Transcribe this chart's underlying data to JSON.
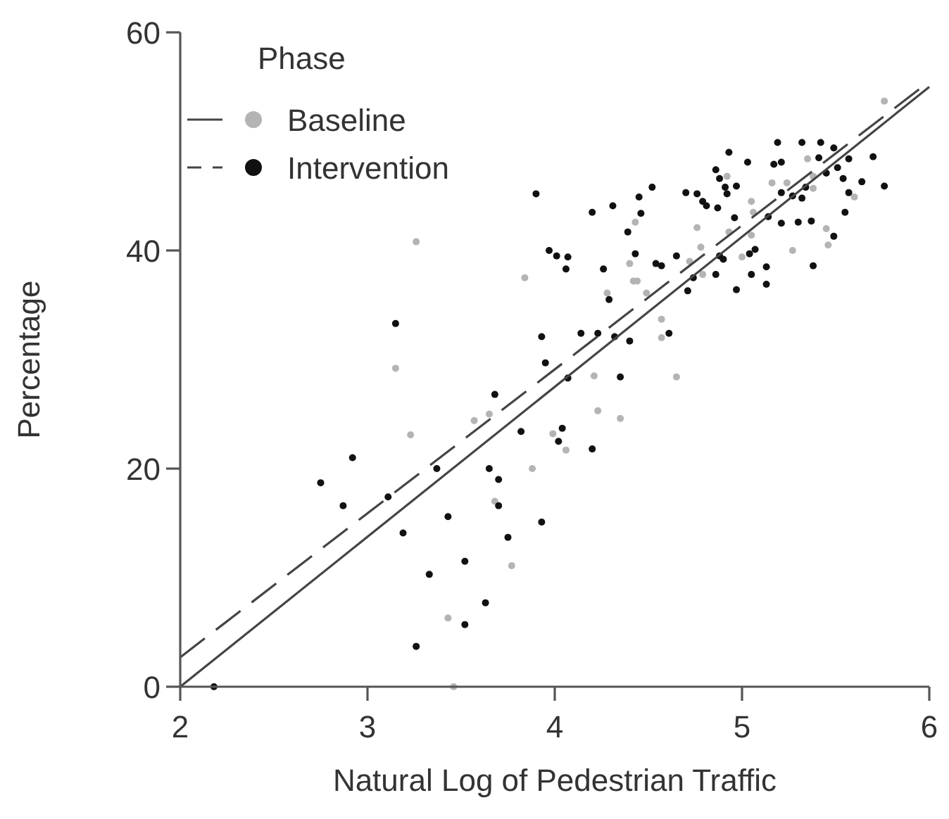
{
  "chart_data": {
    "type": "scatter",
    "xlabel": "Natural Log of Pedestrian Traffic",
    "ylabel": "Percentage",
    "legend_title": "Phase",
    "legend": "top left",
    "marker": "circle",
    "grid": false,
    "xlim": [
      2,
      6
    ],
    "ylim": [
      0,
      60
    ],
    "xticks": [
      2,
      3,
      4,
      5,
      6
    ],
    "yticks": [
      0,
      20,
      40,
      60
    ],
    "series": [
      {
        "name": "Baseline",
        "color": "#b4b4b4",
        "x": [
          3.15,
          3.23,
          3.57,
          3.65,
          3.99,
          4.06,
          4.21,
          4.23,
          4.35,
          3.88,
          3.68,
          3.77,
          3.43,
          3.46,
          3.26,
          3.84,
          5.35,
          5.16,
          5.24,
          5.38,
          5.38,
          5.6,
          5.05,
          5.06,
          4.76,
          4.78,
          5.05,
          5.0,
          5.27,
          5.45,
          5.46,
          4.92,
          4.43,
          4.4,
          4.44,
          4.42,
          4.28,
          4.49,
          4.72,
          4.79,
          4.57,
          4.57,
          4.65,
          4.93,
          5.76
        ],
        "values": [
          29.2,
          23.1,
          24.4,
          25.0,
          23.2,
          21.7,
          28.5,
          25.3,
          24.6,
          20.0,
          17.0,
          11.1,
          6.3,
          0,
          40.8,
          37.5,
          48.4,
          46.2,
          46.2,
          46.8,
          45.7,
          44.9,
          44.5,
          43.5,
          42.1,
          40.3,
          41.4,
          39.4,
          40.0,
          42.0,
          40.5,
          46.8,
          42.6,
          38.8,
          37.2,
          37.2,
          36.1,
          36.1,
          39.0,
          37.8,
          33.7,
          32.0,
          28.4,
          41.7,
          53.7
        ]
      },
      {
        "name": "Intervention",
        "color": "#111111",
        "x": [
          2.18,
          3.95,
          4.07,
          4.35,
          3.68,
          2.92,
          2.75,
          2.87,
          3.11,
          3.37,
          3.65,
          3.7,
          3.82,
          4.04,
          4.02,
          4.2,
          3.19,
          3.43,
          3.7,
          3.93,
          3.75,
          3.52,
          3.33,
          3.63,
          3.52,
          3.26,
          3.9,
          3.97,
          3.15,
          3.93,
          4.52,
          4.93,
          5.03,
          5.19,
          5.32,
          5.42,
          5.17,
          5.21,
          5.49,
          5.41,
          5.57,
          5.7,
          5.76,
          5.45,
          5.51,
          5.54,
          5.64,
          5.57,
          5.55,
          4.86,
          4.88,
          4.91,
          4.92,
          4.97,
          4.7,
          4.76,
          4.79,
          4.81,
          4.87,
          4.96,
          5.14,
          5.21,
          5.3,
          5.37,
          5.27,
          5.32,
          5.21,
          5.34,
          5.49,
          5.38,
          5.13,
          5.13,
          5.05,
          4.97,
          5.07,
          5.04,
          4.9,
          4.86,
          4.74,
          4.71,
          4.65,
          4.57,
          4.54,
          4.43,
          4.39,
          4.46,
          4.45,
          4.31,
          4.2,
          4.26,
          4.01,
          4.07,
          4.06,
          4.29,
          4.14,
          4.23,
          4.32,
          4.4,
          4.61,
          4.88
        ],
        "values": [
          0,
          29.7,
          28.3,
          28.4,
          26.8,
          21.0,
          18.7,
          16.6,
          17.4,
          20.0,
          20.0,
          19.0,
          23.4,
          23.7,
          22.5,
          21.8,
          14.1,
          15.6,
          16.6,
          15.1,
          13.7,
          11.5,
          10.3,
          7.7,
          5.7,
          3.7,
          45.2,
          40.0,
          33.3,
          32.1,
          45.8,
          49.0,
          48.1,
          49.9,
          49.9,
          49.9,
          47.9,
          48.1,
          49.4,
          48.5,
          48.4,
          48.6,
          45.9,
          47.1,
          47.6,
          46.6,
          46.3,
          45.3,
          43.5,
          47.4,
          46.6,
          45.8,
          45.2,
          45.9,
          45.3,
          45.2,
          44.5,
          44.1,
          43.9,
          43.0,
          43.1,
          42.5,
          42.6,
          42.7,
          45.0,
          44.8,
          45.3,
          45.8,
          41.3,
          38.6,
          38.5,
          36.9,
          37.8,
          36.4,
          40.1,
          39.7,
          39.2,
          37.8,
          37.5,
          36.3,
          39.5,
          38.6,
          38.8,
          39.7,
          41.7,
          43.4,
          44.9,
          44.1,
          43.5,
          38.3,
          39.5,
          39.4,
          38.3,
          35.5,
          32.4,
          32.4,
          32.1,
          31.7,
          32.4,
          39.5
        ]
      },
      {
        "type": "line",
        "color": "#444444",
        "line_style": "solid",
        "marker": "none",
        "x": [
          2,
          6
        ],
        "values": [
          0,
          55
        ]
      },
      {
        "type": "line",
        "color": "#444444",
        "line_style": "dashed",
        "marker": "none",
        "x": [
          2,
          6
        ],
        "values": [
          2.7,
          55.5
        ]
      }
    ]
  }
}
